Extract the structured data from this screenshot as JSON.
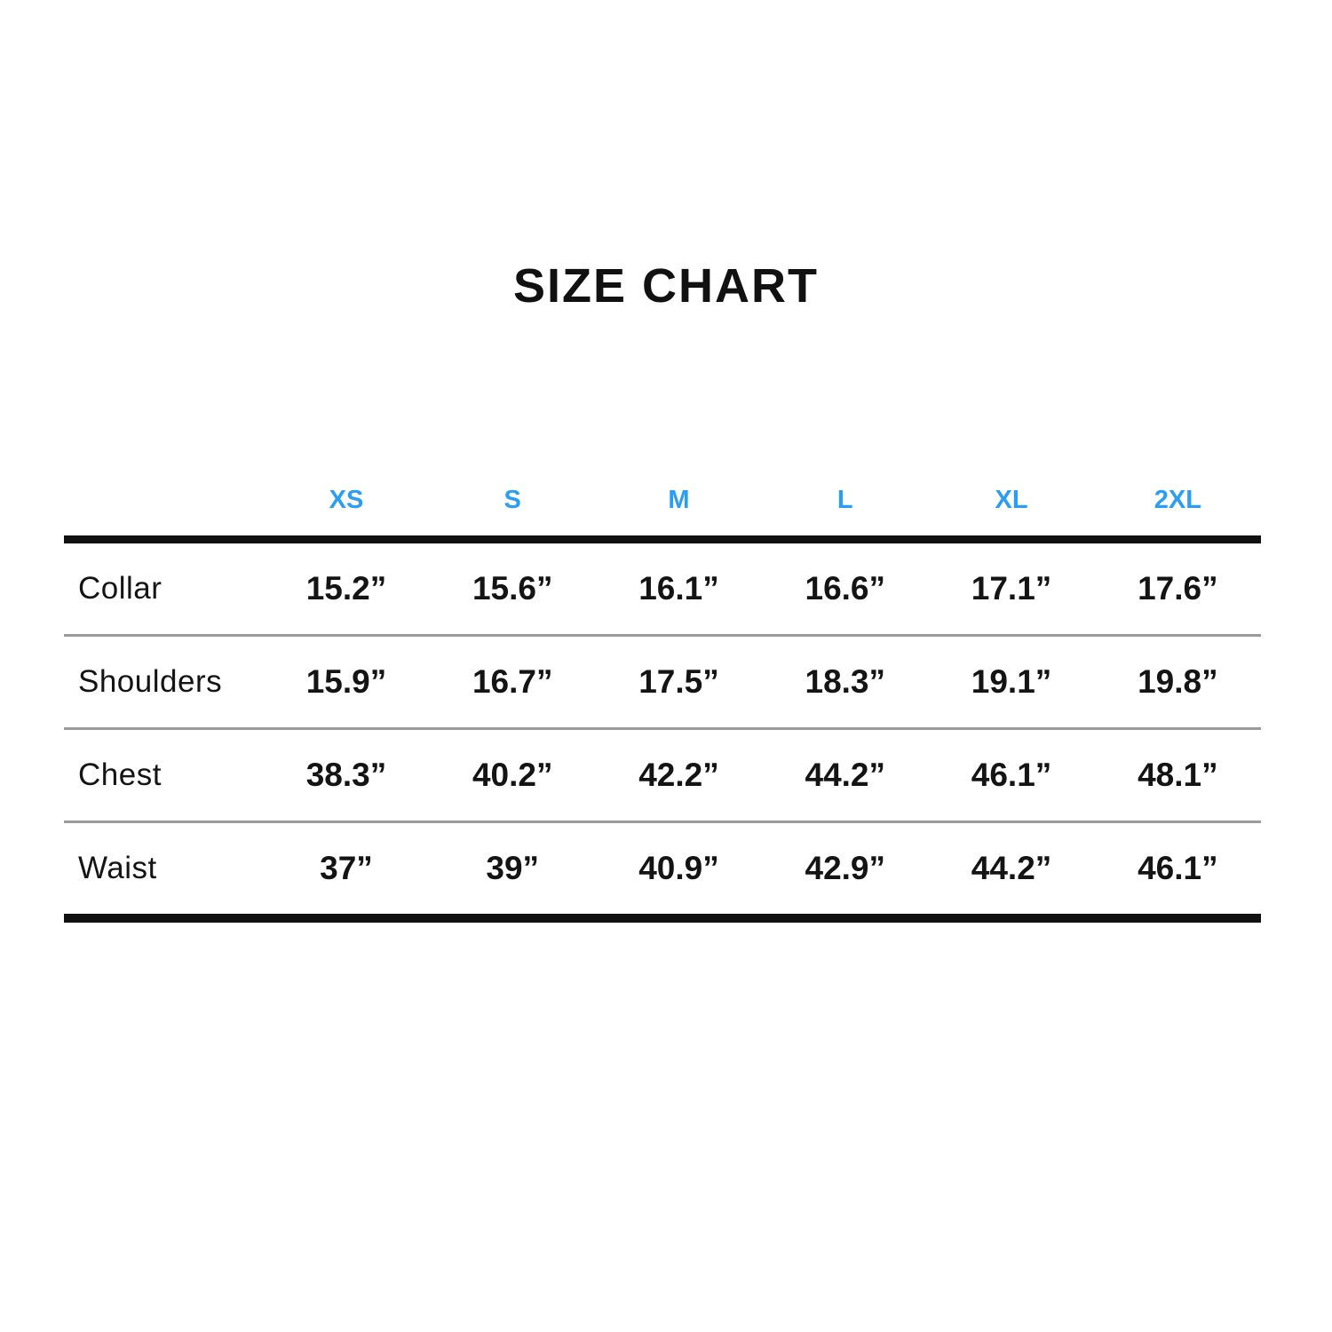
{
  "title": "SIZE CHART",
  "colors": {
    "accent_blue": "#2b9df3",
    "text_black": "#141414",
    "divider_gray": "#9b9b9b",
    "line_black": "#111111"
  },
  "chart_data": {
    "type": "table",
    "title": "SIZE CHART",
    "size_headers": [
      "XS",
      "S",
      "M",
      "L",
      "XL",
      "2XL"
    ],
    "rows": [
      {
        "label": "Collar",
        "values": [
          "15.2”",
          "15.6”",
          "16.1”",
          "16.6”",
          "17.1”",
          "17.6”"
        ]
      },
      {
        "label": "Shoulders",
        "values": [
          "15.9”",
          "16.7”",
          "17.5”",
          "18.3”",
          "19.1”",
          "19.8”"
        ]
      },
      {
        "label": "Chest",
        "values": [
          "38.3”",
          "40.2”",
          "42.2”",
          "44.2”",
          "46.1”",
          "48.1”"
        ]
      },
      {
        "label": "Waist",
        "values": [
          "37”",
          "39”",
          "40.9”",
          "42.9”",
          "44.2”",
          "46.1”"
        ]
      }
    ]
  }
}
